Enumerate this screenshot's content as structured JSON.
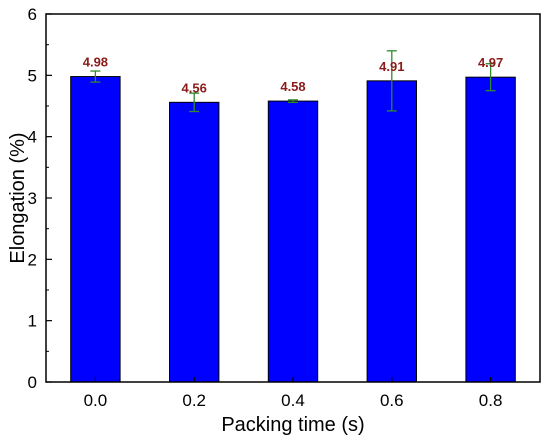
{
  "chart_data": {
    "type": "bar",
    "title": "",
    "xlabel": "Packing time (s)",
    "ylabel": "Elongation (%)",
    "categories": [
      "0.0",
      "0.2",
      "0.4",
      "0.6",
      "0.8"
    ],
    "values": [
      4.98,
      4.56,
      4.58,
      4.91,
      4.97
    ],
    "errors": [
      0.09,
      0.15,
      0.02,
      0.49,
      0.22
    ],
    "data_labels": [
      "4.98",
      "4.56",
      "4.58",
      "4.91",
      "4.97"
    ],
    "ylim": [
      0,
      6
    ],
    "yticks": [
      0,
      1,
      2,
      3,
      4,
      5,
      6
    ],
    "ytick_labels": [
      "0",
      "1",
      "2",
      "3",
      "4",
      "5",
      "6"
    ],
    "grid": false,
    "legend": "none",
    "colors": {
      "bar_fill": "#0000ff",
      "bar_stroke": "#000000",
      "error_bar": "#2e8b2e",
      "data_label": "#8b1a1a",
      "axis": "#000000"
    }
  }
}
